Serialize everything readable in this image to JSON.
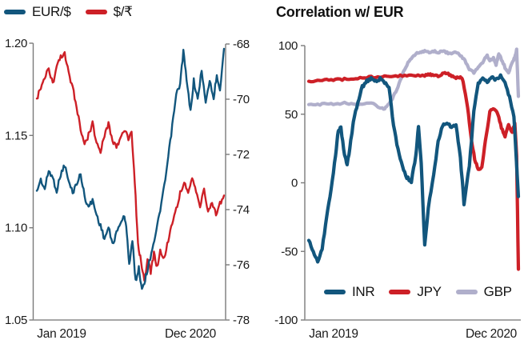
{
  "figure": {
    "left_legend_items": [
      "EUR/$",
      "$/₹"
    ],
    "right_title": "Correlation w/ EUR"
  },
  "chart_data": [
    {
      "type": "line",
      "title": "",
      "x_tick_labels": [
        "Jan 2019",
        "Dec 2020"
      ],
      "x_range_months": 23.5,
      "y_axis_left": {
        "min": 1.05,
        "max": 1.2,
        "tick_labels": [
          "1.20",
          "1.15",
          "1.10",
          "1.05"
        ]
      },
      "y_axis_right": {
        "min": -78,
        "max": -68,
        "tick_labels": [
          "-68",
          "-70",
          "-72",
          "-74",
          "-76",
          "-78"
        ]
      },
      "legend_position": "top-left",
      "grid": false,
      "series": [
        {
          "name": "EUR/$",
          "color": "#12567D",
          "axis": "left",
          "width": 2.4,
          "noise": 3.2,
          "x": [
            0,
            0.5,
            1,
            1.5,
            2,
            2.5,
            3,
            3.5,
            4,
            4.5,
            5,
            5.5,
            6,
            6.5,
            7,
            7.5,
            8,
            8.5,
            9,
            9.5,
            10,
            10.5,
            11,
            11.3,
            11.6,
            12,
            12.4,
            12.8,
            13.2,
            13.6,
            14,
            14.5,
            15,
            15.5,
            16,
            16.5,
            17,
            17.5,
            18,
            18.4,
            18.8,
            19.3,
            19.7,
            20.2,
            20.7,
            21.2,
            21.7,
            22.2,
            22.6,
            23,
            23.5
          ],
          "values": [
            1.12,
            1.126,
            1.121,
            1.131,
            1.127,
            1.12,
            1.129,
            1.134,
            1.125,
            1.119,
            1.124,
            1.129,
            1.117,
            1.111,
            1.115,
            1.107,
            1.101,
            1.094,
            1.1,
            1.091,
            1.097,
            1.103,
            1.106,
            1.098,
            1.08,
            1.093,
            1.071,
            1.078,
            1.067,
            1.072,
            1.079,
            1.089,
            1.098,
            1.11,
            1.122,
            1.138,
            1.155,
            1.172,
            1.178,
            1.196,
            1.18,
            1.163,
            1.18,
            1.169,
            1.186,
            1.167,
            1.18,
            1.17,
            1.183,
            1.175,
            1.197
          ]
        },
        {
          "name": "$/₹",
          "color": "#CD2027",
          "axis": "right",
          "width": 2.4,
          "noise": 3.2,
          "x": [
            0,
            0.5,
            1,
            1.5,
            2,
            2.5,
            3,
            3.5,
            4,
            4.5,
            5,
            5.5,
            6,
            6.5,
            7,
            7.5,
            8,
            8.5,
            9,
            9.5,
            10,
            10.5,
            11,
            11.5,
            11.9,
            12.3,
            12.7,
            13.1,
            13.5,
            13.9,
            14.3,
            14.7,
            15.1,
            15.5,
            16,
            16.5,
            17,
            17.5,
            18,
            18.5,
            19,
            19.5,
            20,
            20.5,
            21,
            21.5,
            22,
            22.5,
            23,
            23.5
          ],
          "values": [
            -70.0,
            -69.6,
            -69.3,
            -68.9,
            -69.5,
            -68.9,
            -68.5,
            -68.4,
            -69.1,
            -69.6,
            -70.3,
            -71.1,
            -71.7,
            -71.3,
            -70.9,
            -71.6,
            -71.9,
            -71.3,
            -70.9,
            -71.5,
            -71.8,
            -71.4,
            -71.1,
            -71.5,
            -71.2,
            -73.0,
            -75.3,
            -75.9,
            -76.6,
            -75.8,
            -76.3,
            -75.6,
            -76.1,
            -75.5,
            -75.8,
            -75.1,
            -74.5,
            -74.0,
            -73.4,
            -73.0,
            -73.5,
            -72.9,
            -73.3,
            -73.9,
            -73.3,
            -74.1,
            -73.7,
            -74.2,
            -73.8,
            -73.5
          ]
        }
      ]
    },
    {
      "type": "line",
      "title": "Correlation w/ EUR",
      "x_tick_labels": [
        "Jan 2019",
        "Dec 2020"
      ],
      "x_range_months": 23.5,
      "y_axis": {
        "min": -100,
        "max": 100,
        "tick_labels": [
          "100",
          "50",
          "0",
          "-50",
          "-100"
        ]
      },
      "legend_position": "bottom-inside",
      "grid": false,
      "series": [
        {
          "name": "INR",
          "color": "#12567D",
          "axis": "y",
          "width": 4.2,
          "noise": 1.8,
          "x": [
            0,
            0.5,
            1,
            1.5,
            2,
            2.5,
            3,
            3.3,
            3.6,
            4,
            4.3,
            4.7,
            5,
            5.5,
            6,
            6.5,
            7,
            7.5,
            8,
            8.5,
            9,
            9.5,
            10,
            10.5,
            11,
            11.5,
            12,
            12.3,
            12.6,
            13,
            13.4,
            14,
            14.5,
            15,
            15.5,
            16,
            16.5,
            17,
            17.4,
            18,
            18.5,
            19,
            19.5,
            20,
            20.5,
            21,
            21.5,
            22,
            22.5,
            23,
            23.5
          ],
          "values": [
            -42,
            -50,
            -58,
            -48,
            -25,
            -5,
            20,
            38,
            40,
            20,
            13,
            30,
            45,
            58,
            70,
            74,
            76,
            74,
            76,
            73,
            70,
            42,
            24,
            12,
            4,
            1,
            20,
            41,
            15,
            -46,
            -18,
            6,
            30,
            42,
            44,
            40,
            43,
            18,
            -15,
            12,
            52,
            72,
            76,
            74,
            77,
            75,
            78,
            74,
            62,
            48,
            -10
          ]
        },
        {
          "name": "JPY",
          "color": "#CD2027",
          "axis": "y",
          "width": 4.2,
          "noise": 1.2,
          "x": [
            0,
            1,
            2,
            3,
            4,
            5,
            6,
            7,
            8,
            9,
            10,
            11,
            12,
            13,
            13.5,
            14,
            14.5,
            15,
            15.5,
            16,
            16.5,
            17,
            17.3,
            17.8,
            18.2,
            18.6,
            19,
            19.4,
            19.8,
            20.3,
            20.8,
            21.2,
            21.6,
            22,
            22.4,
            22.8,
            23.1,
            23.3,
            23.5
          ],
          "values": [
            74,
            74.5,
            75,
            75,
            75.5,
            76,
            76.5,
            77,
            77.5,
            78,
            78,
            78,
            78.5,
            78,
            79,
            78.5,
            78,
            79.5,
            80,
            78,
            76,
            77.5,
            74,
            55,
            33,
            17,
            10,
            11,
            30,
            52,
            54,
            50,
            40,
            34,
            42,
            37,
            43,
            20,
            -63
          ]
        },
        {
          "name": "GBP",
          "color": "#B0AFCB",
          "axis": "y",
          "width": 4.2,
          "noise": 1.2,
          "x": [
            0,
            1,
            2,
            3,
            4,
            5,
            6,
            7,
            8,
            8.5,
            9,
            9.5,
            10,
            10.5,
            11,
            11.5,
            12,
            12.5,
            13,
            13.5,
            14,
            14.5,
            15,
            15.5,
            16,
            16.5,
            17,
            17.5,
            18,
            18.5,
            19,
            19.5,
            20,
            20.3,
            20.7,
            21,
            21.3,
            21.6,
            22,
            22.4,
            22.8,
            23.1,
            23.3,
            23.5
          ],
          "values": [
            57,
            57,
            57.5,
            57,
            58,
            57.5,
            57,
            58,
            55,
            54,
            57,
            63,
            70,
            79,
            86,
            91,
            94,
            95,
            96,
            95,
            96,
            95,
            96,
            95,
            94,
            95,
            93,
            89,
            83,
            80,
            84,
            88,
            93,
            89,
            91,
            86,
            94,
            90,
            84,
            80,
            88,
            91,
            97,
            63
          ]
        }
      ]
    }
  ]
}
